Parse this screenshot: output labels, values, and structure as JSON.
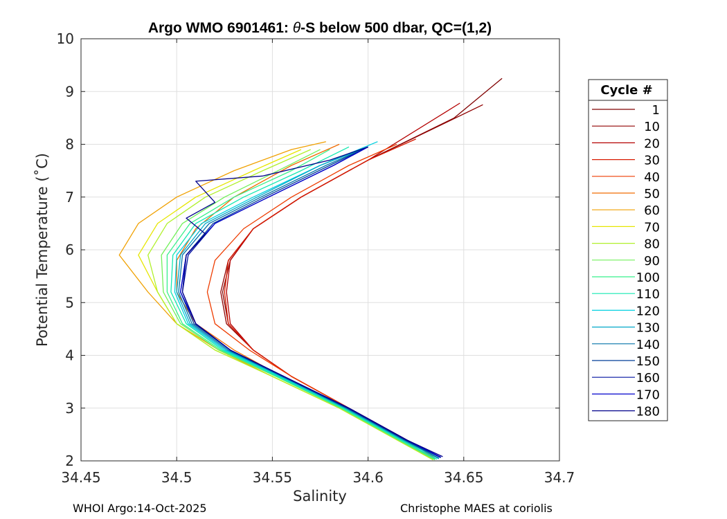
{
  "chart_data": {
    "type": "line",
    "title_prefix": "Argo WMO 6901461: ",
    "title_theta": "θ",
    "title_suffix": "-S below 500 dbar,  QC=(1,2)",
    "xlabel": "Salinity",
    "ylabel": "Potential Temperature (˚C)",
    "xlim": [
      34.45,
      34.7
    ],
    "ylim": [
      2,
      10
    ],
    "xticks": [
      34.45,
      34.5,
      34.55,
      34.6,
      34.65,
      34.7
    ],
    "xtick_labels": [
      "34.45",
      "34.5",
      "34.55",
      "34.6",
      "34.65",
      "34.7"
    ],
    "yticks": [
      2,
      3,
      4,
      5,
      6,
      7,
      8,
      9,
      10
    ],
    "ytick_labels": [
      "2",
      "3",
      "4",
      "5",
      "6",
      "7",
      "8",
      "9",
      "10"
    ],
    "grid": true,
    "legend_title": "Cycle #",
    "legend_position": "right-outside",
    "legend": [
      {
        "label": "1",
        "color": "#800000"
      },
      {
        "label": "10",
        "color": "#900000"
      },
      {
        "label": "20",
        "color": "#b40000"
      },
      {
        "label": "30",
        "color": "#d81a00"
      },
      {
        "label": "40",
        "color": "#ee3c00"
      },
      {
        "label": "50",
        "color": "#f06a00"
      },
      {
        "label": "60",
        "color": "#f0a000"
      },
      {
        "label": "70",
        "color": "#e6e600"
      },
      {
        "label": "80",
        "color": "#b0f02a"
      },
      {
        "label": "90",
        "color": "#70f05a"
      },
      {
        "label": "100",
        "color": "#36f08a"
      },
      {
        "label": "110",
        "color": "#10e8b0"
      },
      {
        "label": "120",
        "color": "#00d0e0"
      },
      {
        "label": "130",
        "color": "#00a8c8"
      },
      {
        "label": "140",
        "color": "#0070a8"
      },
      {
        "label": "150",
        "color": "#003c98"
      },
      {
        "label": "160",
        "color": "#0010a0"
      },
      {
        "label": "170",
        "color": "#0000cc"
      },
      {
        "label": "180",
        "color": "#00008a"
      }
    ],
    "series": [
      {
        "name": "cycles 1-9",
        "color": "#800000",
        "s": [
          34.637,
          34.62,
          34.59,
          34.56,
          34.54,
          34.527,
          34.524,
          34.528,
          34.54,
          34.565,
          34.6,
          34.645,
          34.67
        ],
        "t": [
          2.08,
          2.4,
          3.0,
          3.6,
          4.1,
          4.6,
          5.2,
          5.8,
          6.4,
          7.0,
          7.7,
          8.5,
          9.25
        ]
      },
      {
        "name": "cycles 10-19",
        "color": "#900000",
        "s": [
          34.636,
          34.62,
          34.59,
          34.56,
          34.54,
          34.526,
          34.523,
          34.527,
          34.54,
          34.565,
          34.6,
          34.64,
          34.66
        ],
        "t": [
          2.06,
          2.4,
          3.0,
          3.6,
          4.1,
          4.6,
          5.2,
          5.8,
          6.4,
          7.0,
          7.7,
          8.4,
          8.75
        ]
      },
      {
        "name": "cycles 20-29",
        "color": "#b40000",
        "s": [
          34.636,
          34.62,
          34.59,
          34.56,
          34.54,
          34.528,
          34.526,
          34.528,
          34.54,
          34.565,
          34.6,
          34.64,
          34.648
        ],
        "t": [
          2.06,
          2.4,
          3.0,
          3.6,
          4.1,
          4.6,
          5.2,
          5.8,
          6.4,
          7.0,
          7.7,
          8.6,
          8.78
        ]
      },
      {
        "name": "cycles 30-39",
        "color": "#d81a00",
        "s": [
          34.635,
          34.62,
          34.59,
          34.56,
          34.54,
          34.527,
          34.525,
          34.527,
          34.54,
          34.565,
          34.6,
          34.625
        ],
        "t": [
          2.05,
          2.4,
          3.0,
          3.6,
          4.1,
          4.6,
          5.2,
          5.8,
          6.4,
          7.0,
          7.7,
          8.1
        ]
      },
      {
        "name": "cycles 40-49",
        "color": "#ee3c00",
        "s": [
          34.635,
          34.62,
          34.59,
          34.56,
          34.538,
          34.52,
          34.516,
          34.52,
          34.535,
          34.56,
          34.59,
          34.615
        ],
        "t": [
          2.05,
          2.4,
          3.0,
          3.6,
          4.1,
          4.6,
          5.2,
          5.8,
          6.4,
          7.0,
          7.6,
          8.0
        ]
      },
      {
        "name": "cycles 50-59",
        "color": "#f06a00",
        "s": [
          34.634,
          34.618,
          34.588,
          34.555,
          34.53,
          34.51,
          34.5,
          34.5,
          34.51,
          34.53,
          34.56,
          34.585
        ],
        "t": [
          2.05,
          2.4,
          3.0,
          3.6,
          4.1,
          4.6,
          5.2,
          5.8,
          6.4,
          7.0,
          7.6,
          8.0
        ]
      },
      {
        "name": "cycles 60-69",
        "color": "#f0a000",
        "s": [
          34.634,
          34.615,
          34.585,
          34.55,
          34.522,
          34.5,
          34.485,
          34.47,
          34.48,
          34.5,
          34.53,
          34.56,
          34.578
        ],
        "t": [
          2.03,
          2.4,
          3.0,
          3.6,
          4.1,
          4.6,
          5.2,
          5.9,
          6.5,
          7.0,
          7.5,
          7.9,
          8.05
        ]
      },
      {
        "name": "cycles 70-79",
        "color": "#e6e600",
        "s": [
          34.634,
          34.615,
          34.585,
          34.55,
          34.52,
          34.5,
          34.49,
          34.48,
          34.49,
          34.51,
          34.54,
          34.565
        ],
        "t": [
          2.02,
          2.4,
          3.0,
          3.6,
          4.1,
          4.6,
          5.2,
          5.9,
          6.5,
          7.0,
          7.5,
          7.9
        ]
      },
      {
        "name": "cycles 80-89",
        "color": "#b0f02a",
        "s": [
          34.634,
          34.615,
          34.585,
          34.55,
          34.52,
          34.5,
          34.49,
          34.485,
          34.495,
          34.515,
          34.545,
          34.57
        ],
        "t": [
          2.02,
          2.4,
          3.0,
          3.6,
          4.1,
          4.6,
          5.2,
          5.9,
          6.5,
          7.0,
          7.5,
          7.9
        ]
      },
      {
        "name": "cycles 90-99",
        "color": "#70f05a",
        "s": [
          34.635,
          34.616,
          34.586,
          34.552,
          34.522,
          34.502,
          34.493,
          34.492,
          34.503,
          34.525,
          34.553,
          34.575
        ],
        "t": [
          2.02,
          2.4,
          3.0,
          3.6,
          4.1,
          4.6,
          5.2,
          5.9,
          6.5,
          7.0,
          7.5,
          7.9
        ]
      },
      {
        "name": "cycles 100-109",
        "color": "#36f08a",
        "s": [
          34.635,
          34.616,
          34.586,
          34.552,
          34.523,
          34.503,
          34.495,
          34.495,
          34.507,
          34.53,
          34.56,
          34.58
        ],
        "t": [
          2.03,
          2.4,
          3.0,
          3.6,
          4.1,
          4.6,
          5.2,
          5.9,
          6.5,
          7.0,
          7.5,
          7.9
        ]
      },
      {
        "name": "cycles 110-119",
        "color": "#10e8b0",
        "s": [
          34.636,
          34.617,
          34.587,
          34.553,
          34.524,
          34.505,
          34.497,
          34.498,
          34.51,
          34.535,
          34.565,
          34.59
        ],
        "t": [
          2.03,
          2.4,
          3.0,
          3.6,
          4.1,
          4.6,
          5.2,
          5.9,
          6.5,
          7.0,
          7.5,
          7.95
        ]
      },
      {
        "name": "cycles 120-129",
        "color": "#00d0e0",
        "s": [
          34.637,
          34.618,
          34.588,
          34.554,
          34.525,
          34.506,
          34.499,
          34.5,
          34.513,
          34.54,
          34.575,
          34.605
        ],
        "t": [
          2.04,
          2.4,
          3.0,
          3.6,
          4.1,
          4.6,
          5.2,
          5.9,
          6.5,
          7.0,
          7.6,
          8.05
        ]
      },
      {
        "name": "cycles 130-139",
        "color": "#00a8c8",
        "s": [
          34.637,
          34.618,
          34.588,
          34.555,
          34.526,
          34.507,
          34.5,
          34.502,
          34.515,
          34.542,
          34.575,
          34.6
        ],
        "t": [
          2.05,
          2.4,
          3.0,
          3.6,
          4.1,
          4.6,
          5.2,
          5.9,
          6.5,
          7.0,
          7.6,
          7.95
        ]
      },
      {
        "name": "cycles 140-149",
        "color": "#0070a8",
        "s": [
          34.637,
          34.619,
          34.589,
          34.555,
          34.527,
          34.508,
          34.501,
          34.503,
          34.517,
          34.544,
          34.578,
          34.6
        ],
        "t": [
          2.05,
          2.4,
          3.0,
          3.6,
          4.1,
          4.6,
          5.2,
          5.9,
          6.5,
          7.0,
          7.6,
          7.95
        ]
      },
      {
        "name": "cycles 150-159",
        "color": "#003c98",
        "s": [
          34.638,
          34.619,
          34.589,
          34.556,
          34.528,
          34.509,
          34.502,
          34.505,
          34.519,
          34.546,
          34.58,
          34.6
        ],
        "t": [
          2.06,
          2.4,
          3.0,
          3.6,
          4.1,
          4.6,
          5.2,
          5.9,
          6.5,
          7.0,
          7.6,
          7.95
        ]
      },
      {
        "name": "cycles 160-169",
        "color": "#0010a0",
        "s": [
          34.638,
          34.62,
          34.59,
          34.556,
          34.528,
          34.51,
          34.503,
          34.506,
          34.52,
          34.548,
          34.582,
          34.6
        ],
        "t": [
          2.07,
          2.4,
          3.0,
          3.6,
          4.1,
          4.6,
          5.2,
          5.9,
          6.5,
          7.0,
          7.6,
          7.95
        ]
      },
      {
        "name": "cycles 170-179",
        "color": "#0000cc",
        "s": [
          34.638,
          34.62,
          34.59,
          34.556,
          34.528,
          34.51,
          34.502,
          34.505,
          34.52,
          34.548,
          34.582,
          34.6
        ],
        "t": [
          2.07,
          2.4,
          3.0,
          3.6,
          4.1,
          4.6,
          5.2,
          5.9,
          6.5,
          7.0,
          7.6,
          7.95
        ]
      },
      {
        "name": "cycles 180+",
        "color": "#00008a",
        "s": [
          34.639,
          34.62,
          34.59,
          34.556,
          34.528,
          34.51,
          34.503,
          34.505,
          34.515,
          34.505,
          34.52,
          34.51,
          34.545,
          34.58,
          34.6
        ],
        "t": [
          2.08,
          2.4,
          3.0,
          3.6,
          4.1,
          4.6,
          5.2,
          5.9,
          6.3,
          6.6,
          6.9,
          7.3,
          7.4,
          7.7,
          7.95
        ]
      }
    ]
  },
  "footer": {
    "left": "WHOI Argo:14-Oct-2025",
    "right": "Christophe MAES at coriolis"
  }
}
